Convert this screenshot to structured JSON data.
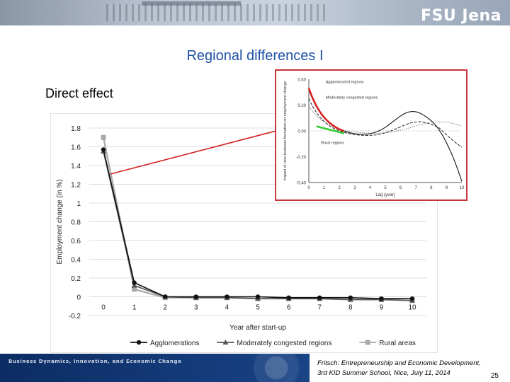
{
  "header": {
    "brand": "FSU Jena"
  },
  "slide": {
    "title": "Regional differences I",
    "subtitle": "Direct effect"
  },
  "chart_data": {
    "type": "line",
    "title": "",
    "xlabel": "Year after start-up",
    "ylabel": "Employment change (in %)",
    "x": [
      0,
      1,
      2,
      3,
      4,
      5,
      6,
      7,
      8,
      9,
      10
    ],
    "xticks": [
      "0",
      "1",
      "2",
      "3",
      "4",
      "5",
      "6",
      "7",
      "8",
      "9",
      "10"
    ],
    "yticks": [
      "-0.2",
      "0",
      "0.2",
      "0.4",
      "0.6",
      "0.8",
      "1",
      "1.2",
      "1.4",
      "1.6",
      "1.8"
    ],
    "ylim": [
      -0.2,
      1.8
    ],
    "grid": true,
    "legend_position": "bottom",
    "series": [
      {
        "name": "Agglomerations",
        "color": "#111111",
        "marker": "circle",
        "values": [
          1.57,
          0.15,
          0.0,
          0.0,
          0.0,
          0.0,
          -0.01,
          -0.01,
          -0.01,
          -0.02,
          -0.02
        ]
      },
      {
        "name": "Moderately congested regions",
        "color": "#555555",
        "marker": "triangle",
        "values": [
          1.55,
          0.12,
          0.0,
          -0.01,
          -0.01,
          -0.02,
          -0.02,
          -0.02,
          -0.03,
          -0.03,
          -0.04
        ]
      },
      {
        "name": "Rural areas",
        "color": "#a8a8a8",
        "marker": "square",
        "values": [
          1.7,
          0.08,
          -0.01,
          -0.01,
          -0.01,
          -0.02,
          -0.02,
          -0.02,
          -0.03,
          -0.03,
          -0.04
        ]
      }
    ]
  },
  "inset": {
    "ylabel": "Impact of new business formation on employment change",
    "xlabel": "Lag (year)",
    "xticks": [
      "0",
      "1",
      "2",
      "3",
      "4",
      "5",
      "6",
      "7",
      "8",
      "9",
      "10"
    ],
    "yticks": [
      "0.40",
      "0.20",
      "0.00",
      "-0.20",
      "-0.40"
    ],
    "legend": [
      "Agglomerated regions",
      "Moderately congested regions",
      "Rural regions"
    ],
    "colors": {
      "agglomerated": "#d42020",
      "rural": "#33cc33",
      "arrow": "#d42020"
    }
  },
  "footer": {
    "left": "Business Dynamics, Innovation, and Economic Change",
    "citation_line1": "Fritsch: Entrepreneurship and Economic Development,",
    "citation_line2": "3rd KID Summer School, Nice, July 11, 2014",
    "page": "25"
  }
}
